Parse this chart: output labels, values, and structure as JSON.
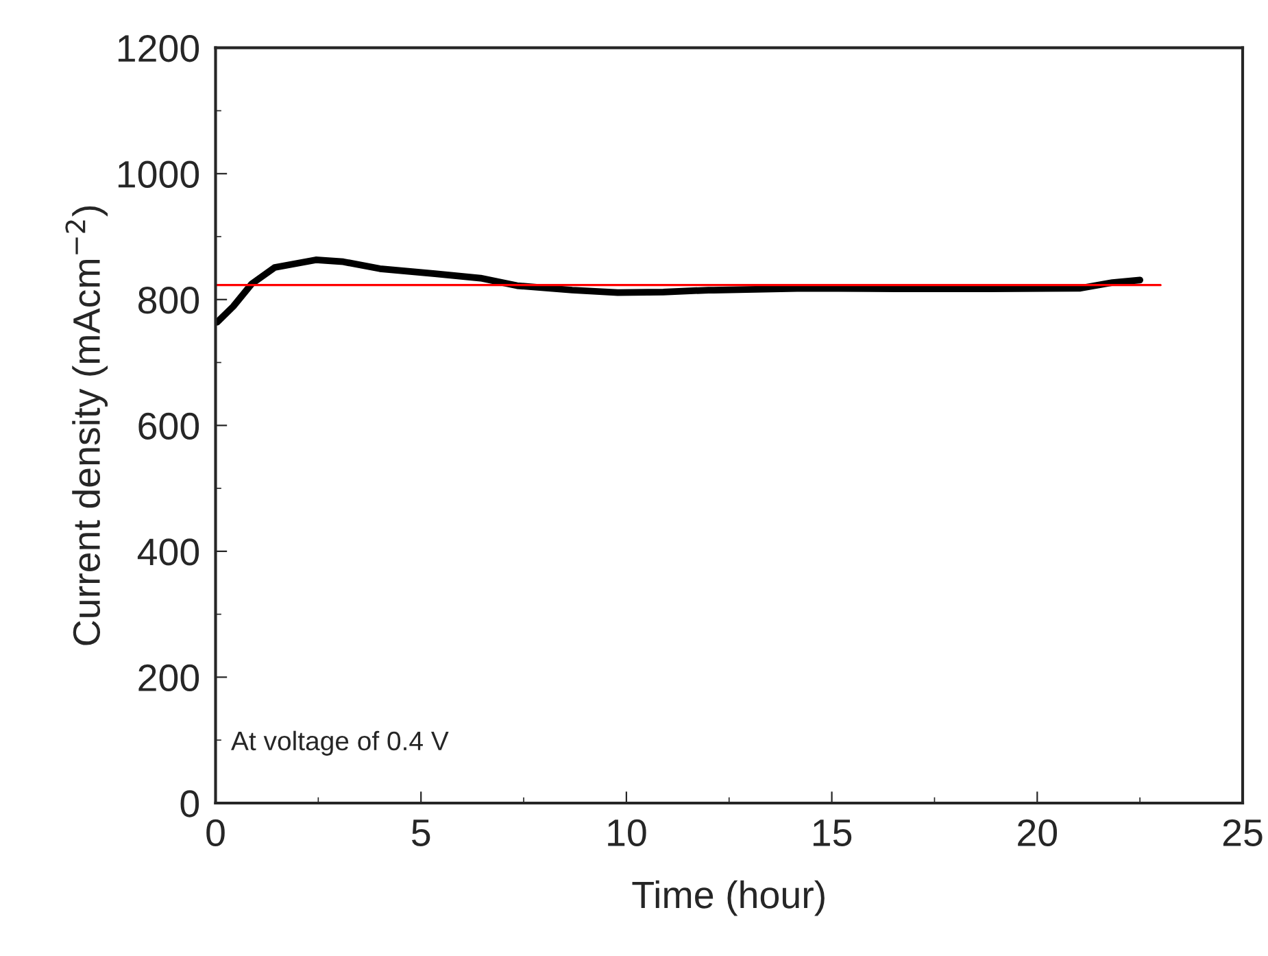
{
  "chart_data": {
    "type": "line",
    "xlabel": "Time (hour)",
    "ylabel": "Current density (mAcm$^{−2}$)",
    "xlim": [
      0,
      25
    ],
    "xticks": [
      0,
      5,
      10,
      15,
      20,
      25
    ],
    "ylim": [
      0,
      1200
    ],
    "yticks": [
      0,
      200,
      400,
      600,
      800,
      1000,
      1200
    ],
    "grid": false,
    "legend": false,
    "marker": "none",
    "line_style": "solid",
    "annotations": [
      "At voltage of 0.4 V"
    ],
    "series": [
      {
        "color": "#000000",
        "x": [
          0.04,
          0.43,
          0.88,
          1.44,
          2.44,
          3.11,
          4.0,
          5.34,
          6.45,
          7.34,
          8.68,
          9.79,
          10.9,
          12.0,
          12.13,
          14.36,
          16.58,
          18.82,
          21.05,
          21.83,
          22.5
        ],
        "values": [
          764,
          789,
          825,
          851,
          863,
          860,
          849,
          841,
          834,
          822,
          815,
          811,
          812,
          815,
          815,
          818,
          817,
          817,
          818,
          827,
          831
        ]
      },
      {
        "color": "#ff0000",
        "x": [
          0,
          23
        ],
        "values": [
          823,
          823
        ]
      }
    ]
  }
}
